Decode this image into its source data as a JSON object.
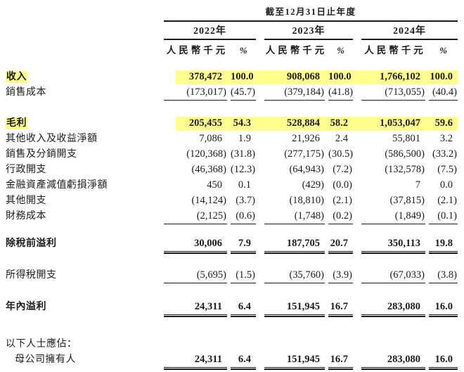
{
  "highlight_color": "#ffff8f",
  "rule_color": "#1c1c1c",
  "table": {
    "period_header": "截至12月31日止年度",
    "col_groups": [
      {
        "year": "2022年",
        "unit": "人民幣千元",
        "pct": "%"
      },
      {
        "year": "2023年",
        "unit": "人民幣千元",
        "pct": "%"
      },
      {
        "year": "2024年",
        "unit": "人民幣千元",
        "pct": "%"
      }
    ],
    "rows": [
      {
        "label": "收入",
        "bold": true,
        "highlight": true,
        "values": [
          "378,472",
          "100.0",
          "908,068",
          "100.0",
          "1,766,102",
          "100.0"
        ]
      },
      {
        "label": "銷售成本",
        "underline": "single",
        "values": [
          "(173,017)",
          "(45.7)",
          "(379,184)",
          "(41.8)",
          "(713,055)",
          "(40.4)"
        ]
      },
      {
        "gap": "a"
      },
      {
        "label": "毛利",
        "bold": true,
        "highlight": true,
        "values": [
          "205,455",
          "54.3",
          "528,884",
          "58.2",
          "1,053,047",
          "59.6"
        ]
      },
      {
        "label": "其他收入及收益淨額",
        "values": [
          "7,086",
          "1.9",
          "21,926",
          "2.4",
          "55,801",
          "3.2"
        ]
      },
      {
        "label": "銷售及分銷開支",
        "values": [
          "(120,368)",
          "(31.8)",
          "(277,175)",
          "(30.5)",
          "(586,500)",
          "(33.2)"
        ]
      },
      {
        "label": "行政開支",
        "values": [
          "(46,368)",
          "(12.3)",
          "(64,943)",
          "(7.2)",
          "(132,578)",
          "(7.5)"
        ]
      },
      {
        "label": "金融資產減值虧損淨額",
        "values": [
          "450",
          "0.1",
          "(429)",
          "(0.0)",
          "7",
          "0.0"
        ]
      },
      {
        "label": "其他開支",
        "values": [
          "(14,124)",
          "(3.7)",
          "(18,810)",
          "(2.1)",
          "(37,815)",
          "(2.1)"
        ]
      },
      {
        "label": "財務成本",
        "underline": "single",
        "values": [
          "(2,125)",
          "(0.6)",
          "(1,748)",
          "(0.2)",
          "(1,849)",
          "(0.1)"
        ]
      },
      {
        "gap": "b"
      },
      {
        "label": "除稅前溢利",
        "bold": true,
        "underline": "double",
        "values": [
          "30,006",
          "7.9",
          "187,705",
          "20.7",
          "350,113",
          "19.8"
        ]
      },
      {
        "gap": "c"
      },
      {
        "label": "所得稅開支",
        "underline": "single",
        "values": [
          "(5,695)",
          "(1.5)",
          "(35,760)",
          "(3.9)",
          "(67,033)",
          "(3.8)"
        ]
      },
      {
        "gap": "d"
      },
      {
        "label": "年內溢利",
        "bold": true,
        "underline": "double",
        "values": [
          "24,311",
          "6.4",
          "151,945",
          "16.7",
          "283,080",
          "16.0"
        ]
      },
      {
        "gap": "e"
      },
      {
        "label": "以下人士應佔：",
        "values": [
          "",
          "",
          "",
          "",
          "",
          ""
        ]
      },
      {
        "label": "母公司擁有人",
        "indent": true,
        "bold_values": true,
        "underline": "double",
        "values": [
          "24,311",
          "6.4",
          "151,945",
          "16.7",
          "283,080",
          "16.0"
        ]
      }
    ]
  }
}
